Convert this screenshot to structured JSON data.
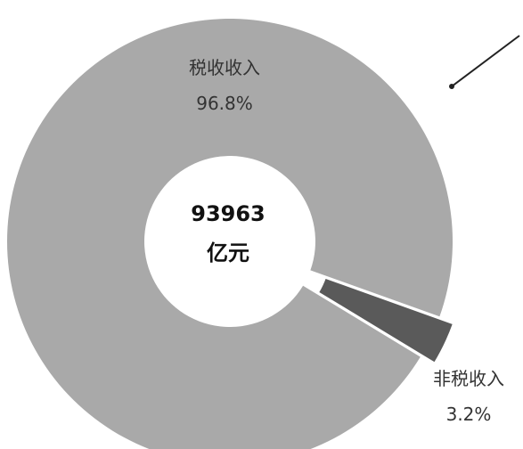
{
  "chart_data": {
    "type": "pie",
    "style": "donut",
    "center_value": "93963",
    "center_unit": "亿元",
    "slices": [
      {
        "name": "税收收入",
        "value_text": "96.8%",
        "value": 96.8,
        "color": "#a9a9a9"
      },
      {
        "name": "非税收入",
        "value_text": "3.2%",
        "value": 3.2,
        "color": "#5a5a5a",
        "exploded": true
      }
    ]
  }
}
